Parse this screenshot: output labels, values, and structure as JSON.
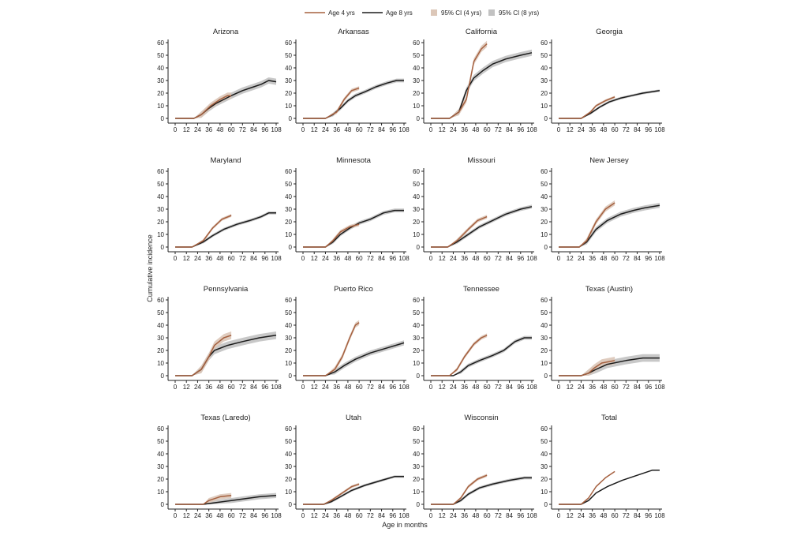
{
  "chart_data": {
    "type": "line",
    "xlabel": "Age in months",
    "ylabel": "Cumulative incidence",
    "xlim": [
      0,
      108
    ],
    "ylim": [
      0,
      60
    ],
    "xticks": [
      0,
      12,
      24,
      36,
      48,
      60,
      72,
      84,
      96,
      108
    ],
    "yticks": [
      0,
      10,
      20,
      30,
      40,
      50,
      60
    ],
    "grid": false,
    "legend_position": "top",
    "legend": {
      "age4": "Age 4 yrs",
      "age8": "Age 8 yrs",
      "ci4": "95% CI (4 yrs)",
      "ci8": "95% CI (8 yrs)"
    },
    "colors": {
      "age4": "#a5603f",
      "age8": "#1b1b1b",
      "ci4": "#dcc7b8",
      "ci8": "#c2c2c2"
    },
    "panels": [
      {
        "title": "Arizona",
        "ci_halfwidth": 2.5,
        "age4": [
          [
            0,
            0
          ],
          [
            20,
            0
          ],
          [
            28,
            3
          ],
          [
            38,
            10
          ],
          [
            48,
            15
          ],
          [
            56,
            18
          ],
          [
            60,
            18
          ]
        ],
        "age8": [
          [
            0,
            0
          ],
          [
            20,
            0
          ],
          [
            28,
            3
          ],
          [
            36,
            8
          ],
          [
            44,
            12
          ],
          [
            52,
            15
          ],
          [
            60,
            18
          ],
          [
            72,
            22
          ],
          [
            84,
            25
          ],
          [
            92,
            27
          ],
          [
            100,
            30
          ],
          [
            108,
            29
          ]
        ]
      },
      {
        "title": "Arkansas",
        "ci_halfwidth": 1.5,
        "age4": [
          [
            0,
            0
          ],
          [
            24,
            0
          ],
          [
            36,
            5
          ],
          [
            44,
            15
          ],
          [
            52,
            22
          ],
          [
            60,
            24
          ]
        ],
        "age8": [
          [
            0,
            0
          ],
          [
            24,
            0
          ],
          [
            32,
            3
          ],
          [
            40,
            8
          ],
          [
            48,
            14
          ],
          [
            56,
            18
          ],
          [
            66,
            21
          ],
          [
            78,
            25
          ],
          [
            90,
            28
          ],
          [
            100,
            30
          ],
          [
            108,
            30
          ]
        ]
      },
      {
        "title": "California",
        "ci_halfwidth": 2.5,
        "age4": [
          [
            0,
            0
          ],
          [
            20,
            0
          ],
          [
            30,
            5
          ],
          [
            38,
            15
          ],
          [
            42,
            30
          ],
          [
            46,
            45
          ],
          [
            54,
            55
          ],
          [
            60,
            59
          ]
        ],
        "age8": [
          [
            0,
            0
          ],
          [
            20,
            0
          ],
          [
            30,
            5
          ],
          [
            38,
            22
          ],
          [
            46,
            32
          ],
          [
            56,
            38
          ],
          [
            66,
            43
          ],
          [
            80,
            47
          ],
          [
            96,
            50
          ],
          [
            108,
            52
          ]
        ]
      },
      {
        "title": "Georgia",
        "ci_halfwidth": 1,
        "age4": [
          [
            0,
            0
          ],
          [
            24,
            0
          ],
          [
            34,
            5
          ],
          [
            40,
            10
          ],
          [
            50,
            14
          ],
          [
            60,
            17
          ]
        ],
        "age8": [
          [
            0,
            0
          ],
          [
            24,
            0
          ],
          [
            34,
            4
          ],
          [
            44,
            9
          ],
          [
            54,
            13
          ],
          [
            66,
            16
          ],
          [
            78,
            18
          ],
          [
            90,
            20
          ],
          [
            108,
            22
          ]
        ]
      },
      {
        "title": "Maryland",
        "ci_halfwidth": 1.2,
        "age4": [
          [
            0,
            0
          ],
          [
            18,
            0
          ],
          [
            30,
            5
          ],
          [
            40,
            15
          ],
          [
            50,
            22
          ],
          [
            60,
            25
          ]
        ],
        "age8": [
          [
            0,
            0
          ],
          [
            18,
            0
          ],
          [
            30,
            4
          ],
          [
            40,
            9
          ],
          [
            52,
            14
          ],
          [
            66,
            18
          ],
          [
            80,
            21
          ],
          [
            92,
            24
          ],
          [
            100,
            27
          ],
          [
            108,
            27
          ]
        ]
      },
      {
        "title": "Minnesota",
        "ci_halfwidth": 1.5,
        "age4": [
          [
            0,
            0
          ],
          [
            24,
            0
          ],
          [
            32,
            5
          ],
          [
            40,
            12
          ],
          [
            50,
            16
          ],
          [
            60,
            18
          ]
        ],
        "age8": [
          [
            0,
            0
          ],
          [
            24,
            0
          ],
          [
            32,
            4
          ],
          [
            40,
            10
          ],
          [
            50,
            15
          ],
          [
            60,
            19
          ],
          [
            72,
            22
          ],
          [
            86,
            27
          ],
          [
            98,
            29
          ],
          [
            108,
            29
          ]
        ]
      },
      {
        "title": "Missouri",
        "ci_halfwidth": 1.5,
        "age4": [
          [
            0,
            0
          ],
          [
            18,
            0
          ],
          [
            28,
            5
          ],
          [
            40,
            14
          ],
          [
            50,
            21
          ],
          [
            60,
            24
          ]
        ],
        "age8": [
          [
            0,
            0
          ],
          [
            18,
            0
          ],
          [
            28,
            4
          ],
          [
            40,
            10
          ],
          [
            52,
            16
          ],
          [
            66,
            21
          ],
          [
            80,
            26
          ],
          [
            96,
            30
          ],
          [
            108,
            32
          ]
        ]
      },
      {
        "title": "New Jersey",
        "ci_halfwidth": 2,
        "age4": [
          [
            0,
            0
          ],
          [
            22,
            0
          ],
          [
            30,
            5
          ],
          [
            40,
            20
          ],
          [
            50,
            30
          ],
          [
            60,
            35
          ]
        ],
        "age8": [
          [
            0,
            0
          ],
          [
            22,
            0
          ],
          [
            30,
            4
          ],
          [
            40,
            14
          ],
          [
            52,
            21
          ],
          [
            66,
            26
          ],
          [
            80,
            29
          ],
          [
            92,
            31
          ],
          [
            108,
            33
          ]
        ]
      },
      {
        "title": "Pennsylvania",
        "ci_halfwidth": 3,
        "age4": [
          [
            0,
            0
          ],
          [
            18,
            0
          ],
          [
            28,
            5
          ],
          [
            36,
            15
          ],
          [
            42,
            24
          ],
          [
            52,
            30
          ],
          [
            60,
            32
          ]
        ],
        "age8": [
          [
            0,
            0
          ],
          [
            18,
            0
          ],
          [
            28,
            5
          ],
          [
            36,
            15
          ],
          [
            42,
            20
          ],
          [
            56,
            24
          ],
          [
            72,
            27
          ],
          [
            90,
            30
          ],
          [
            108,
            32
          ]
        ]
      },
      {
        "title": "Puerto Rico",
        "ci_halfwidth": 2,
        "age4": [
          [
            0,
            0
          ],
          [
            24,
            0
          ],
          [
            34,
            5
          ],
          [
            42,
            15
          ],
          [
            50,
            30
          ],
          [
            56,
            40
          ],
          [
            60,
            42
          ]
        ],
        "age8": [
          [
            0,
            0
          ],
          [
            24,
            0
          ],
          [
            34,
            3
          ],
          [
            44,
            8
          ],
          [
            56,
            13
          ],
          [
            72,
            18
          ],
          [
            90,
            22
          ],
          [
            108,
            26
          ]
        ]
      },
      {
        "title": "Tennessee",
        "ci_halfwidth": 1.5,
        "age4": [
          [
            0,
            0
          ],
          [
            20,
            0
          ],
          [
            28,
            5
          ],
          [
            36,
            15
          ],
          [
            46,
            25
          ],
          [
            54,
            30
          ],
          [
            60,
            32
          ]
        ],
        "age8": [
          [
            0,
            0
          ],
          [
            24,
            0
          ],
          [
            32,
            3
          ],
          [
            40,
            8
          ],
          [
            52,
            12
          ],
          [
            66,
            16
          ],
          [
            78,
            20
          ],
          [
            90,
            27
          ],
          [
            100,
            30
          ],
          [
            108,
            30
          ]
        ]
      },
      {
        "title": "Texas (Austin)",
        "ci_halfwidth": 3,
        "age4": [
          [
            0,
            0
          ],
          [
            24,
            0
          ],
          [
            32,
            2
          ],
          [
            38,
            6
          ],
          [
            46,
            10
          ],
          [
            60,
            12
          ]
        ],
        "age8": [
          [
            0,
            0
          ],
          [
            24,
            0
          ],
          [
            32,
            2
          ],
          [
            40,
            5
          ],
          [
            52,
            9
          ],
          [
            72,
            12
          ],
          [
            90,
            14
          ],
          [
            108,
            14
          ]
        ]
      },
      {
        "title": "Texas (Laredo)",
        "ci_halfwidth": 2,
        "age4": [
          [
            0,
            0
          ],
          [
            30,
            0
          ],
          [
            36,
            3
          ],
          [
            48,
            6
          ],
          [
            60,
            7
          ]
        ],
        "age8": [
          [
            0,
            0
          ],
          [
            30,
            0
          ],
          [
            40,
            1
          ],
          [
            60,
            3
          ],
          [
            80,
            5
          ],
          [
            90,
            6
          ],
          [
            108,
            7
          ]
        ]
      },
      {
        "title": "Utah",
        "ci_halfwidth": 1,
        "age4": [
          [
            0,
            0
          ],
          [
            22,
            0
          ],
          [
            30,
            3
          ],
          [
            40,
            8
          ],
          [
            52,
            14
          ],
          [
            60,
            16
          ]
        ],
        "age8": [
          [
            0,
            0
          ],
          [
            22,
            0
          ],
          [
            30,
            2
          ],
          [
            40,
            6
          ],
          [
            52,
            11
          ],
          [
            66,
            15
          ],
          [
            84,
            19
          ],
          [
            98,
            22
          ],
          [
            108,
            22
          ]
        ]
      },
      {
        "title": "Wisconsin",
        "ci_halfwidth": 1.2,
        "age4": [
          [
            0,
            0
          ],
          [
            24,
            0
          ],
          [
            32,
            5
          ],
          [
            40,
            14
          ],
          [
            50,
            20
          ],
          [
            60,
            23
          ]
        ],
        "age8": [
          [
            0,
            0
          ],
          [
            24,
            0
          ],
          [
            32,
            3
          ],
          [
            40,
            8
          ],
          [
            52,
            13
          ],
          [
            66,
            16
          ],
          [
            84,
            19
          ],
          [
            100,
            21
          ],
          [
            108,
            21
          ]
        ]
      },
      {
        "title": "Total",
        "ci_halfwidth": 0.3,
        "age4": [
          [
            0,
            0
          ],
          [
            24,
            0
          ],
          [
            32,
            5
          ],
          [
            40,
            14
          ],
          [
            50,
            21
          ],
          [
            58,
            25
          ],
          [
            60,
            26
          ]
        ],
        "age8": [
          [
            0,
            0
          ],
          [
            24,
            0
          ],
          [
            32,
            3
          ],
          [
            40,
            9
          ],
          [
            52,
            14
          ],
          [
            68,
            19
          ],
          [
            84,
            23
          ],
          [
            100,
            27
          ],
          [
            108,
            27
          ]
        ]
      }
    ]
  }
}
